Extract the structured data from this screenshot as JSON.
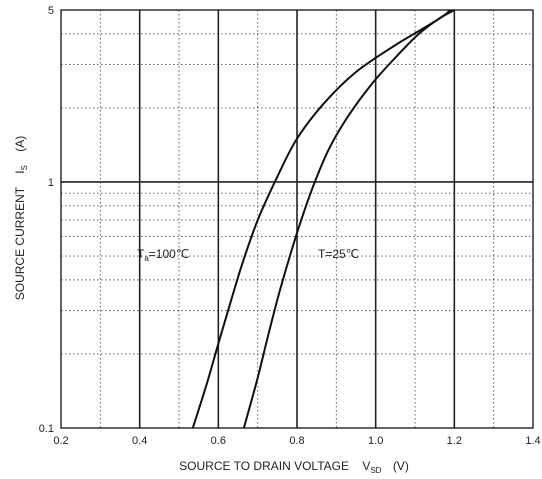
{
  "chart_data": {
    "type": "line",
    "xlabel": {
      "main": "SOURCE TO DRAIN VOLTAGE",
      "symbol": "V",
      "sub": "SD",
      "unit": "(V)"
    },
    "ylabel": {
      "main": "SOURCE CURRENT",
      "symbol": "I",
      "sub": "S",
      "unit": "(A)"
    },
    "xlim": [
      0.2,
      1.4
    ],
    "ylim": [
      0.1,
      5
    ],
    "y_scale": "log",
    "grid": true,
    "x_ticks": [
      "0.2",
      "0.4",
      "0.6",
      "0.8",
      "1.0",
      "1.2",
      "1.4"
    ],
    "x_tick_values": [
      0.2,
      0.4,
      0.6,
      0.8,
      1.0,
      1.2,
      1.4
    ],
    "y_ticks": [
      "0.1",
      "1",
      "5"
    ],
    "y_tick_values": [
      0.1,
      1,
      5
    ],
    "series": [
      {
        "annotation": {
          "main": "T",
          "sub": "a",
          "rest": "=100℃"
        },
        "x": [
          0.535,
          0.57,
          0.6,
          0.63,
          0.66,
          0.7,
          0.75,
          0.8,
          0.87,
          0.95,
          1.05,
          1.12,
          1.17,
          1.19
        ],
        "y": [
          0.1,
          0.15,
          0.22,
          0.32,
          0.46,
          0.7,
          1.05,
          1.5,
          2.1,
          2.8,
          3.6,
          4.2,
          4.7,
          5.0
        ]
      },
      {
        "annotation": {
          "main": "",
          "sub": "",
          "rest": "T=25℃"
        },
        "x": [
          0.665,
          0.7,
          0.73,
          0.76,
          0.8,
          0.84,
          0.88,
          0.93,
          0.99,
          1.05,
          1.11,
          1.16,
          1.2
        ],
        "y": [
          0.1,
          0.16,
          0.25,
          0.38,
          0.62,
          0.95,
          1.35,
          1.85,
          2.5,
          3.2,
          4.0,
          4.6,
          5.0
        ]
      }
    ]
  }
}
